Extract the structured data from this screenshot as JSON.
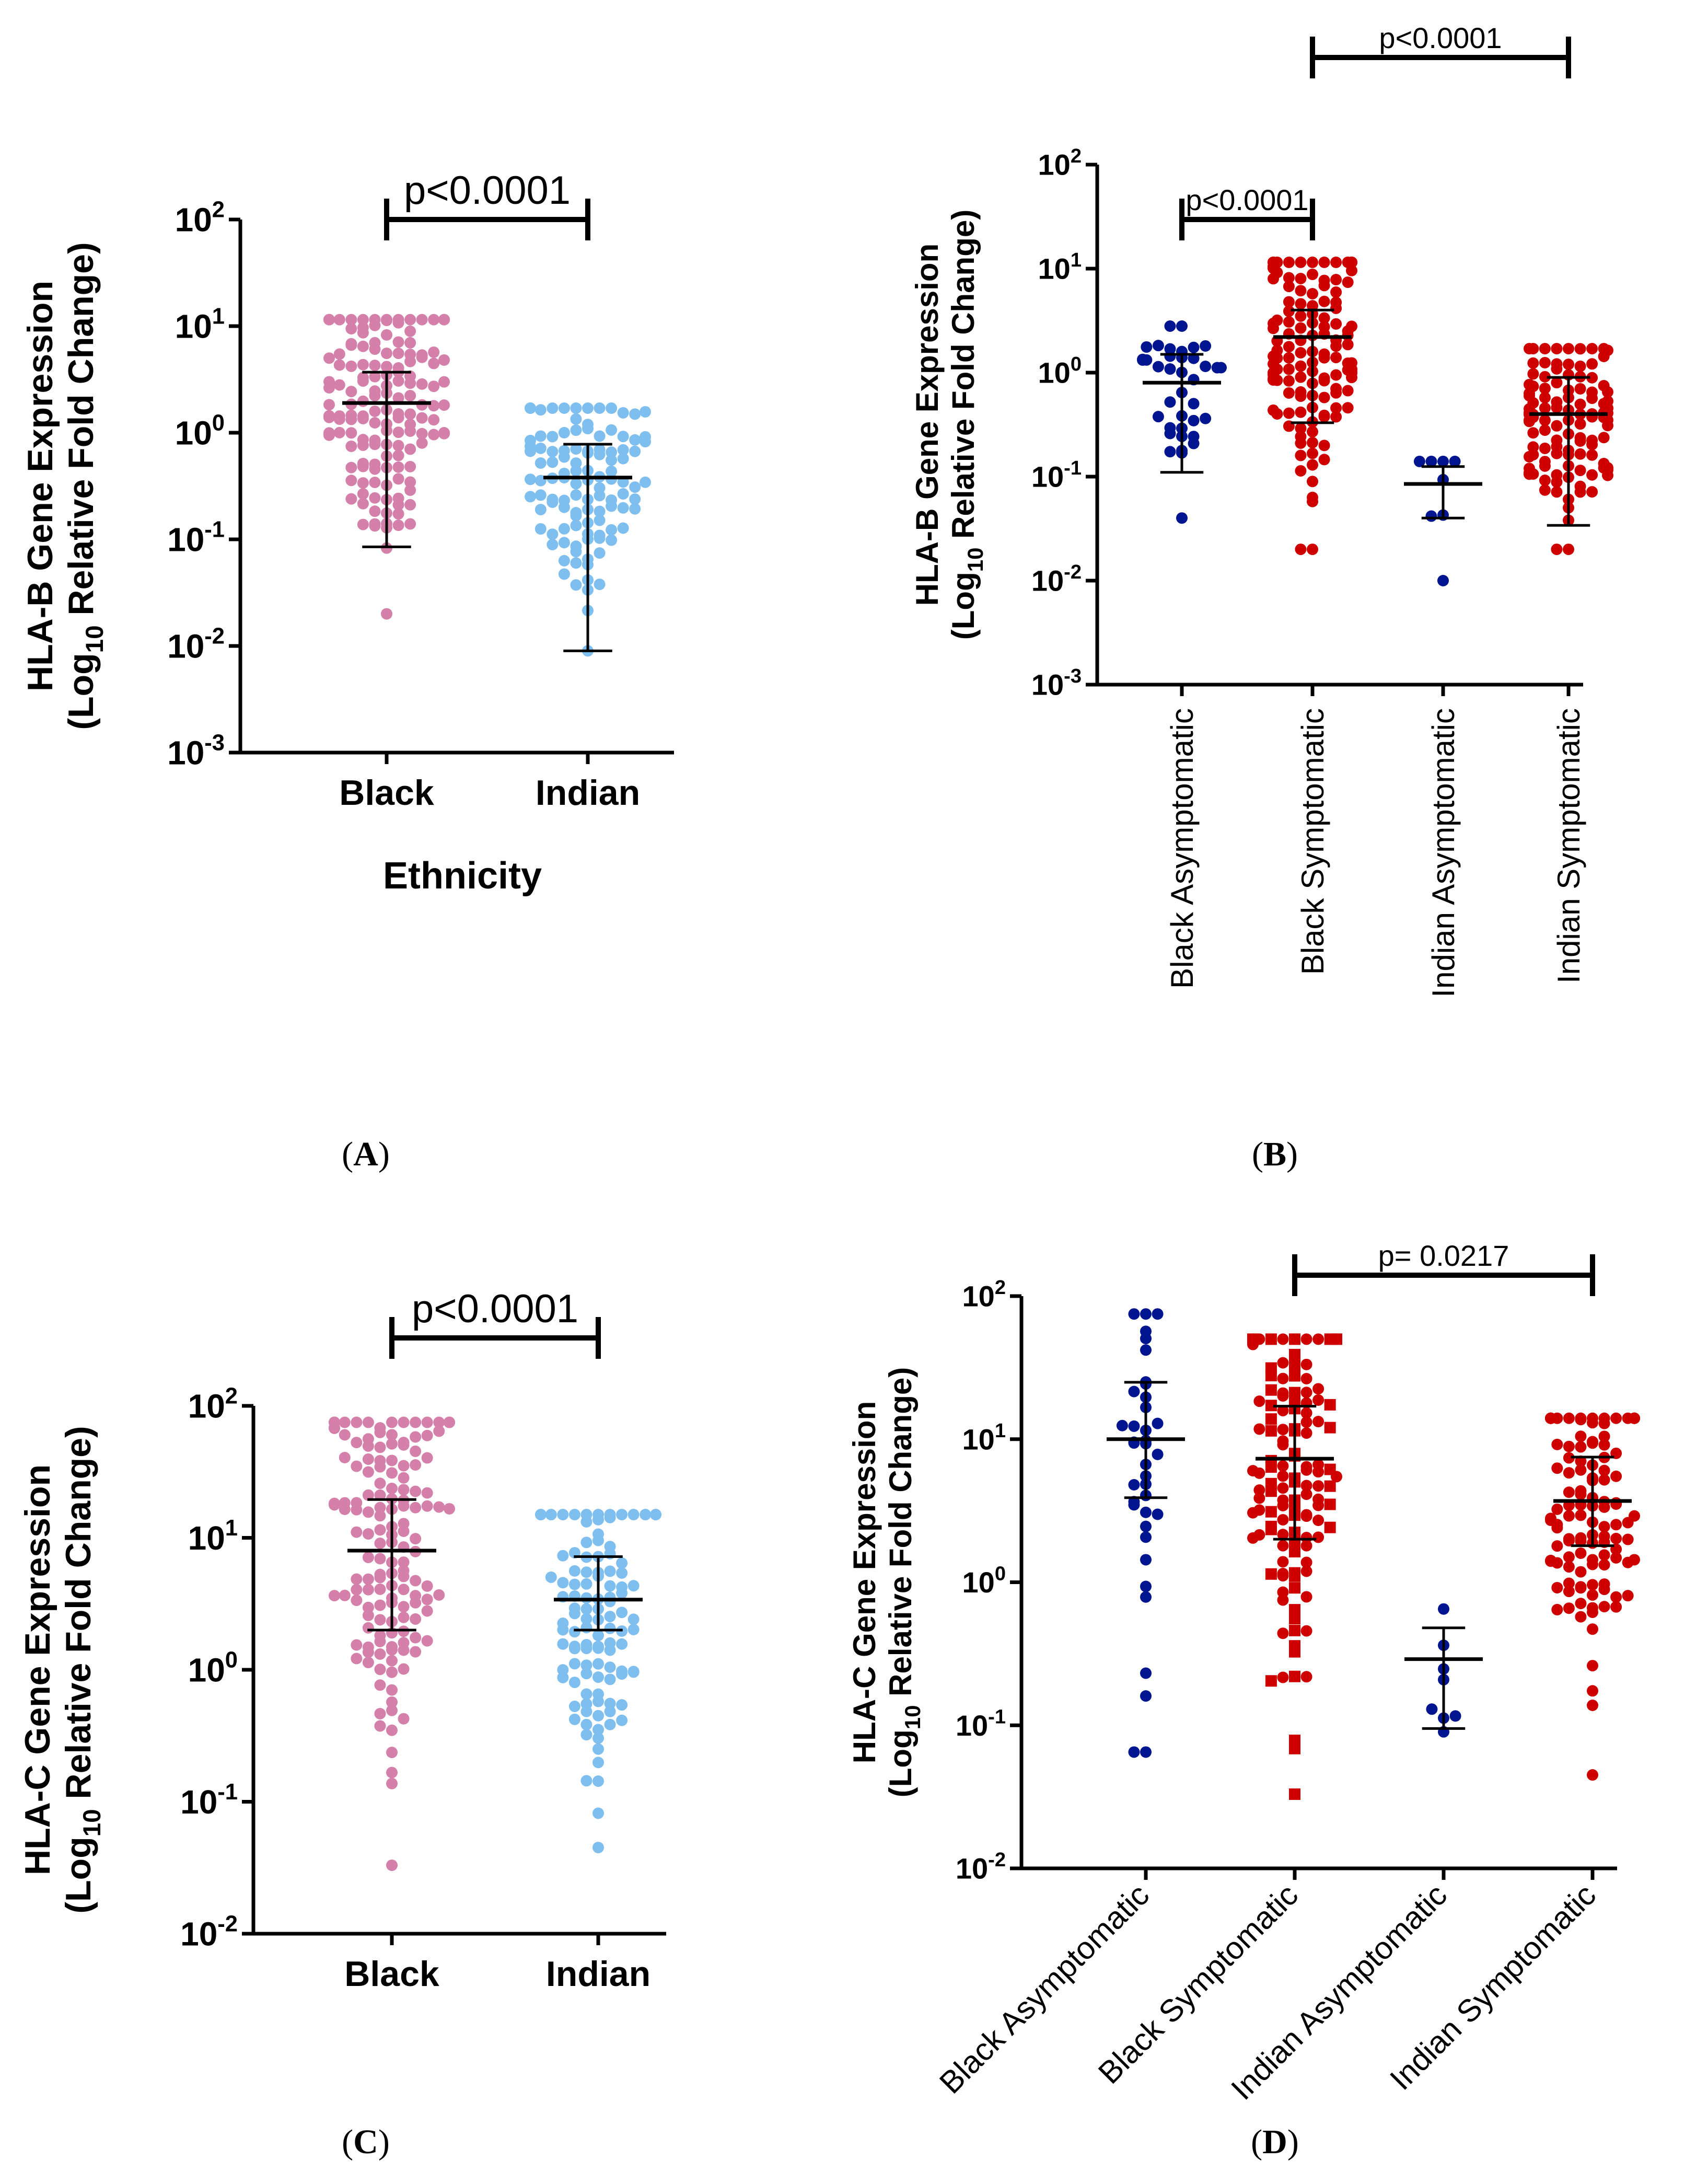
{
  "chart_data": [
    {
      "panel": "A",
      "type": "scatter",
      "scale": "log10",
      "ylim_exp": [
        -3,
        2
      ],
      "ytick_exps": [
        -3,
        -2,
        -1,
        0,
        1,
        2
      ],
      "ylabel_line1": "HLA-B Gene Expression",
      "ylabel_line2_pre": "(Log",
      "ylabel_line2_sub": "10",
      "ylabel_line2_post": " Relative Fold Change)",
      "xlabel": "Ethnicity",
      "categories": [
        "Black",
        "Indian"
      ],
      "colors": [
        "#d580aa",
        "#7fbfef"
      ],
      "n_points": [
        150,
        110
      ],
      "point_range": [
        [
          0.02,
          11.5
        ],
        [
          0.009,
          1.7
        ]
      ],
      "mean": [
        1.9,
        0.38
      ],
      "sd_upper": [
        3.7,
        0.78
      ],
      "sd_lower": [
        0.085,
        0.009
      ],
      "significance": [
        {
          "from": 0,
          "to": 1,
          "label": "p<0.0001"
        }
      ],
      "panel_label": "A"
    },
    {
      "panel": "B",
      "type": "scatter",
      "scale": "log10",
      "ylim_exp": [
        -3,
        2
      ],
      "ytick_exps": [
        -3,
        -2,
        -1,
        0,
        1,
        2
      ],
      "ylabel_line1": "HLA-B Gene Expression",
      "ylabel_line2_pre": "(Log",
      "ylabel_line2_sub": "10",
      "ylabel_line2_post": " Relative Fold Change)",
      "xlabel": "",
      "categories": [
        "Black Asymptomatic",
        "Black Symptomatic",
        "Indian Asymptomatic",
        "Indian Symptomatic"
      ],
      "colors": [
        "#00158f",
        "#cf0000",
        "#00158f",
        "#cf0000"
      ],
      "n_points": [
        38,
        130,
        8,
        115
      ],
      "point_range": [
        [
          0.04,
          2.8
        ],
        [
          0.02,
          11.5
        ],
        [
          0.01,
          0.14
        ],
        [
          0.02,
          1.7
        ]
      ],
      "mean": [
        0.8,
        2.2,
        0.085,
        0.4
      ],
      "sd_upper": [
        1.5,
        4.0,
        0.125,
        0.9
      ],
      "sd_lower": [
        0.11,
        0.33,
        0.04,
        0.034
      ],
      "significance": [
        {
          "from": 0,
          "to": 1,
          "label": "p<0.0001"
        },
        {
          "from": 1,
          "to": 3,
          "label": "p<0.0001"
        }
      ],
      "panel_label": "B"
    },
    {
      "panel": "C",
      "type": "scatter",
      "scale": "log10",
      "ylim_exp": [
        -2,
        2
      ],
      "ytick_exps": [
        -2,
        -1,
        0,
        1,
        2
      ],
      "ylabel_line1": "HLA-C Gene Expression",
      "ylabel_line2_pre": "(Log",
      "ylabel_line2_sub": "10",
      "ylabel_line2_post": " Relative Fold Change)",
      "xlabel": "",
      "categories": [
        "Black",
        "Indian"
      ],
      "colors": [
        "#d580aa",
        "#7fbfef"
      ],
      "n_points": [
        150,
        110
      ],
      "point_range": [
        [
          0.033,
          75
        ],
        [
          0.045,
          15
        ]
      ],
      "mean": [
        8.0,
        3.4
      ],
      "sd_upper": [
        19.5,
        7.2
      ],
      "sd_lower": [
        2.0,
        2.0
      ],
      "significance": [
        {
          "from": 0,
          "to": 1,
          "label": "p<0.0001"
        }
      ],
      "panel_label": "C"
    },
    {
      "panel": "D",
      "type": "scatter",
      "scale": "log10",
      "ylim_exp": [
        -2,
        2
      ],
      "ytick_exps": [
        -2,
        -1,
        0,
        1,
        2
      ],
      "ylabel_line1": "HLA-C Gene Expression",
      "ylabel_line2_pre": "(Log",
      "ylabel_line2_sub": "10",
      "ylabel_line2_post": " Relative Fold Change)",
      "xlabel": "",
      "categories": [
        "Black Asymptomatic",
        "Black Symptomatic",
        "Indian Asymptomatic",
        "Indian Symptomatic"
      ],
      "colors": [
        "#00158f",
        "#cf0000",
        "#00158f",
        "#cf0000"
      ],
      "n_points": [
        38,
        130,
        8,
        115
      ],
      "point_range": [
        [
          0.065,
          75
        ],
        [
          0.033,
          50
        ],
        [
          0.09,
          0.65
        ],
        [
          0.045,
          14
        ]
      ],
      "mean": [
        10.0,
        7.3,
        0.29,
        3.7
      ],
      "sd_upper": [
        25.0,
        17.0,
        0.48,
        7.5
      ],
      "sd_lower": [
        3.9,
        2.0,
        0.095,
        1.8
      ],
      "significance": [
        {
          "from": 1,
          "to": 3,
          "label": "p= 0.0217"
        }
      ],
      "panel_label": "D"
    }
  ]
}
